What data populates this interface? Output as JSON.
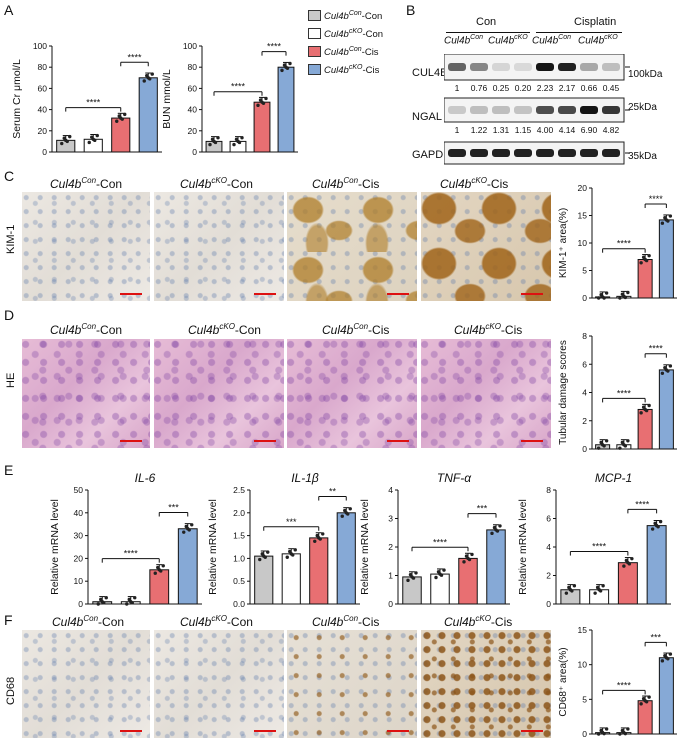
{
  "panels": {
    "A": "A",
    "B": "B",
    "C": "C",
    "D": "D",
    "E": "E",
    "F": "F"
  },
  "legend": [
    {
      "label_base": "Cul4b",
      "label_sup": "Con",
      "label_suffix": "-Con",
      "color": "#c8c8c8"
    },
    {
      "label_base": "Cul4b",
      "label_sup": "cKO",
      "label_suffix": "-Con",
      "color": "#ffffff"
    },
    {
      "label_base": "Cul4b",
      "label_sup": "Con",
      "label_suffix": "-Cis",
      "color": "#e86f72"
    },
    {
      "label_base": "Cul4b",
      "label_sup": "cKO",
      "label_suffix": "-Cis",
      "color": "#86a9d6"
    }
  ],
  "group_labels": {
    "g1": {
      "base": "Cul4b",
      "sup": "Con",
      "suffix": "-Con"
    },
    "g2": {
      "base": "Cul4b",
      "sup": "cKO",
      "suffix": "-Con"
    },
    "g3": {
      "base": "Cul4b",
      "sup": "Con",
      "suffix": "-Cis"
    },
    "g4": {
      "base": "Cul4b",
      "sup": "cKO",
      "suffix": "-Cis"
    }
  },
  "chart_data": [
    {
      "type": "bar",
      "panel": "A",
      "ylabel": "Serum Cr μmol/L",
      "ylim": [
        0,
        100
      ],
      "yticks": [
        "0",
        "20",
        "40",
        "60",
        "80",
        "100"
      ],
      "values": [
        11,
        12,
        32,
        70
      ],
      "sig": [
        "****",
        "****"
      ]
    },
    {
      "type": "bar",
      "panel": "A",
      "ylabel": "BUN mmol/L",
      "ylim": [
        0,
        100
      ],
      "yticks": [
        "0",
        "20",
        "40",
        "60",
        "80",
        "100"
      ],
      "values": [
        10,
        10,
        47,
        80
      ],
      "sig": [
        "****",
        "****"
      ]
    },
    {
      "type": "bar",
      "panel": "C",
      "ylabel": "KIM-1⁺ area(%)",
      "ylim": [
        0,
        20
      ],
      "yticks": [
        "0",
        "5",
        "10",
        "15",
        "20"
      ],
      "values": [
        0.2,
        0.3,
        7,
        14.2
      ],
      "sig": [
        "****",
        "****"
      ]
    },
    {
      "type": "bar",
      "panel": "D",
      "ylabel": "Tubular damage scores",
      "ylim": [
        0,
        8
      ],
      "yticks": [
        "0",
        "2",
        "4",
        "6",
        "8"
      ],
      "values": [
        0.3,
        0.3,
        2.8,
        5.6
      ],
      "sig": [
        "****",
        "****"
      ]
    },
    {
      "type": "bar",
      "panel": "E",
      "title": "IL-6",
      "ylabel": "Relative mRNA level",
      "ylim": [
        0,
        50
      ],
      "yticks": [
        "0",
        "10",
        "20",
        "30",
        "40",
        "50"
      ],
      "values": [
        1,
        1,
        15,
        33
      ],
      "sig": [
        "****",
        "***"
      ]
    },
    {
      "type": "bar",
      "panel": "E",
      "title": "IL-1β",
      "ylabel": "Relative mRNA level",
      "ylim": [
        0,
        2.5
      ],
      "yticks": [
        "0.0",
        "0.5",
        "1.0",
        "1.5",
        "2.0",
        "2.5"
      ],
      "values": [
        1.05,
        1.1,
        1.45,
        2.0
      ],
      "sig": [
        "***",
        "**"
      ]
    },
    {
      "type": "bar",
      "panel": "E",
      "title": "TNF-α",
      "ylabel": "Relative mRNA level",
      "ylim": [
        0,
        4
      ],
      "yticks": [
        "0",
        "1",
        "2",
        "3",
        "4"
      ],
      "values": [
        0.95,
        1.05,
        1.6,
        2.6
      ],
      "sig": [
        "****",
        "***"
      ]
    },
    {
      "type": "bar",
      "panel": "E",
      "title": "MCP-1",
      "ylabel": "Relative mRNA level",
      "ylim": [
        0,
        8
      ],
      "yticks": [
        "0",
        "2",
        "4",
        "6",
        "8"
      ],
      "values": [
        1.0,
        1.0,
        2.9,
        5.5
      ],
      "sig": [
        "****",
        "****"
      ]
    },
    {
      "type": "bar",
      "panel": "F",
      "ylabel": "CD68⁺ area(%)",
      "ylim": [
        0,
        15
      ],
      "yticks": [
        "0",
        "5",
        "10",
        "15"
      ],
      "values": [
        0.2,
        0.2,
        4.8,
        11
      ],
      "sig": [
        "****",
        "***"
      ]
    }
  ],
  "western_blot": {
    "groups": [
      "Con",
      "Cisplatin"
    ],
    "lanes": [
      {
        "base": "Cul4b",
        "sup": "Con"
      },
      {
        "base": "Cul4b",
        "sup": "cKO"
      },
      {
        "base": "Cul4b",
        "sup": "Con"
      },
      {
        "base": "Cul4b",
        "sup": "cKO"
      }
    ],
    "rows": [
      {
        "name": "CUL4B",
        "marker": "100kDa",
        "quant": [
          "1",
          "0.76",
          "0.25",
          "0.20",
          "2.23",
          "2.17",
          "0.66",
          "0.45"
        ],
        "intensity": [
          0.6,
          0.45,
          0.1,
          0.08,
          0.95,
          0.9,
          0.3,
          0.2
        ]
      },
      {
        "name": "NGAL",
        "marker": "25kDa",
        "quant": [
          "1",
          "1.22",
          "1.31",
          "1.15",
          "4.00",
          "4.14",
          "6.90",
          "4.82"
        ],
        "intensity": [
          0.15,
          0.2,
          0.2,
          0.18,
          0.7,
          0.72,
          0.95,
          0.8
        ]
      },
      {
        "name": "GAPDH",
        "marker": "35kDa",
        "quant": [],
        "intensity": [
          0.9,
          0.9,
          0.9,
          0.9,
          0.9,
          0.9,
          0.9,
          0.9
        ]
      }
    ]
  },
  "micrograph_rows": {
    "C": "KIM-1",
    "D": "HE",
    "F": "CD68"
  }
}
